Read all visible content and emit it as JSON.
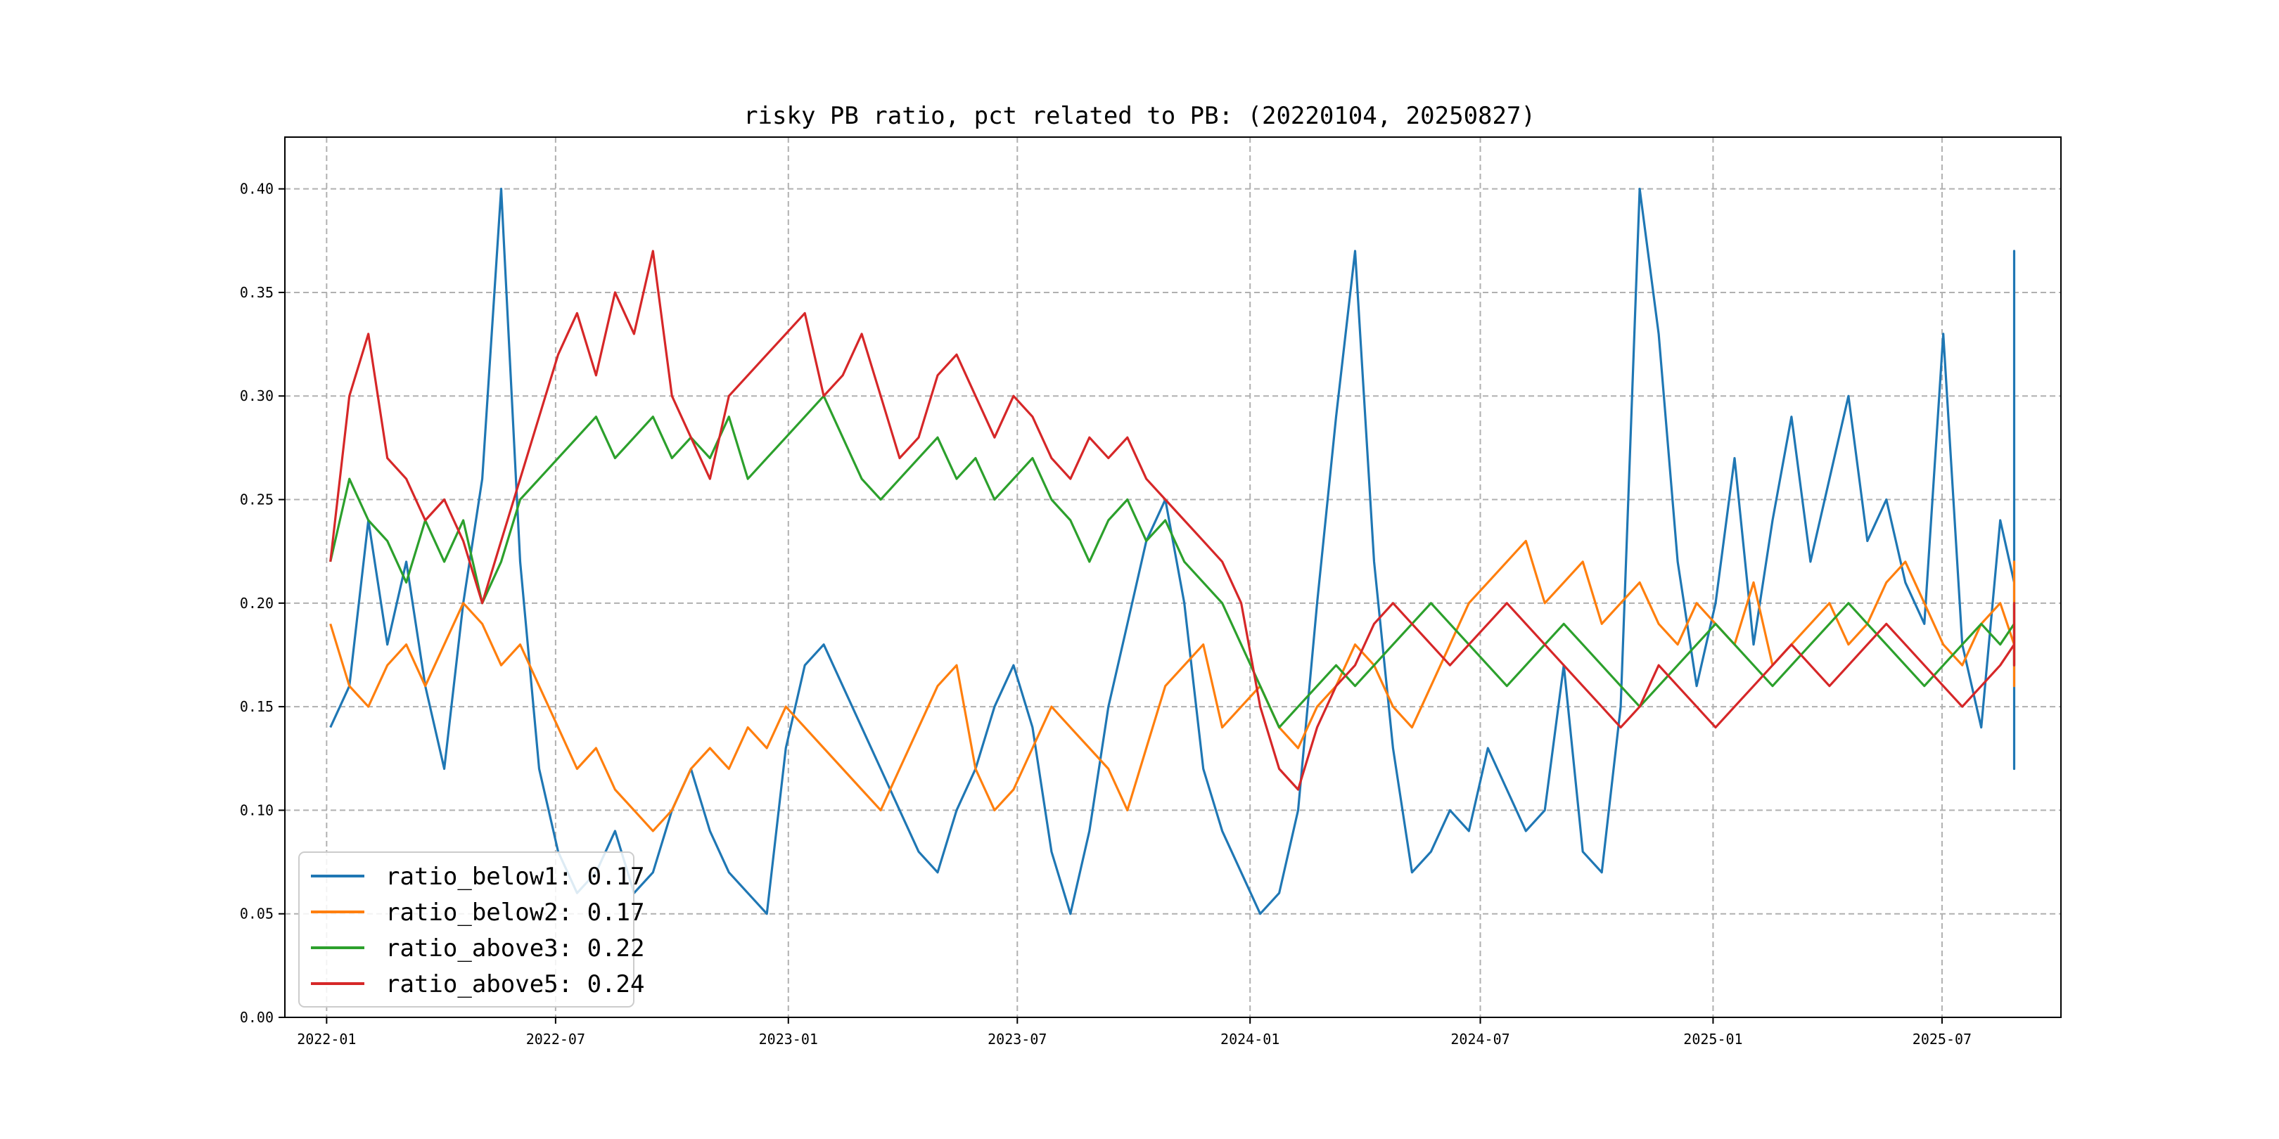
{
  "chart_data": {
    "type": "line",
    "title": "risky PB ratio, pct related to PB: (20220104, 20250827)",
    "xlabel": "",
    "ylabel": "",
    "date_range": [
      "2022-01-04",
      "2025-08-27"
    ],
    "xlim": [
      "2021-11-29",
      "2025-10-03"
    ],
    "ylim": [
      0,
      0.425
    ],
    "grid": true,
    "legend_position": "lower-left",
    "x_ticks": [
      "2022-01",
      "2022-07",
      "2023-01",
      "2023-07",
      "2024-01",
      "2024-07",
      "2025-01",
      "2025-07"
    ],
    "y_ticks": [
      "0.00",
      "0.05",
      "0.10",
      "0.15",
      "0.20",
      "0.25",
      "0.30",
      "0.35",
      "0.40"
    ],
    "series_step_days": 15,
    "series": [
      {
        "name": "ratio_below1",
        "legend": "ratio_below1: 0.17",
        "color": "#1f77b4",
        "values": [
          0.14,
          0.16,
          0.24,
          0.18,
          0.22,
          0.16,
          0.12,
          0.2,
          0.26,
          0.4,
          0.22,
          0.12,
          0.08,
          0.06,
          0.07,
          0.09,
          0.06,
          0.07,
          0.1,
          0.12,
          0.09,
          0.07,
          0.06,
          0.05,
          0.13,
          0.17,
          0.18,
          0.16,
          0.14,
          0.12,
          0.1,
          0.08,
          0.07,
          0.1,
          0.12,
          0.15,
          0.17,
          0.14,
          0.08,
          0.05,
          0.09,
          0.15,
          0.19,
          0.23,
          0.25,
          0.2,
          0.12,
          0.09,
          0.07,
          0.05,
          0.06,
          0.1,
          0.2,
          0.29,
          0.37,
          0.22,
          0.13,
          0.07,
          0.08,
          0.1,
          0.09,
          0.13,
          0.11,
          0.09,
          0.1,
          0.17,
          0.08,
          0.07,
          0.15,
          0.4,
          0.33,
          0.22,
          0.16,
          0.2,
          0.27,
          0.18,
          0.24,
          0.29,
          0.22,
          0.26,
          0.3,
          0.23,
          0.25,
          0.21,
          0.19,
          0.33,
          0.18,
          0.14,
          0.24,
          0.21,
          0.16,
          0.18,
          0.12,
          0.15,
          0.2,
          0.18,
          0.22,
          0.17,
          0.16,
          0.14,
          0.13,
          0.15,
          0.17,
          0.16,
          0.14,
          0.16,
          0.28,
          0.34,
          0.37,
          0.25,
          0.21,
          0.26
        ]
      },
      {
        "name": "ratio_below2",
        "legend": "ratio_below2: 0.17",
        "color": "#ff7f0e",
        "values": [
          0.19,
          0.16,
          0.15,
          0.17,
          0.18,
          0.16,
          0.18,
          0.2,
          0.19,
          0.17,
          0.18,
          0.16,
          0.14,
          0.12,
          0.13,
          0.11,
          0.1,
          0.09,
          0.1,
          0.12,
          0.13,
          0.12,
          0.14,
          0.13,
          0.15,
          0.14,
          0.13,
          0.12,
          0.11,
          0.1,
          0.12,
          0.14,
          0.16,
          0.17,
          0.12,
          0.1,
          0.11,
          0.13,
          0.15,
          0.14,
          0.13,
          0.12,
          0.1,
          0.13,
          0.16,
          0.17,
          0.18,
          0.14,
          0.15,
          0.16,
          0.14,
          0.13,
          0.15,
          0.16,
          0.18,
          0.17,
          0.15,
          0.14,
          0.16,
          0.18,
          0.2,
          0.21,
          0.22,
          0.23,
          0.2,
          0.21,
          0.22,
          0.19,
          0.2,
          0.21,
          0.19,
          0.18,
          0.2,
          0.19,
          0.18,
          0.21,
          0.17,
          0.18,
          0.19,
          0.2,
          0.18,
          0.19,
          0.21,
          0.22,
          0.2,
          0.18,
          0.17,
          0.19,
          0.2,
          0.18,
          0.17,
          0.19,
          0.18,
          0.17,
          0.18,
          0.19,
          0.17,
          0.16,
          0.18,
          0.17,
          0.16,
          0.17,
          0.18,
          0.17,
          0.16,
          0.18,
          0.19,
          0.2,
          0.22,
          0.18,
          0.19,
          0.2
        ]
      },
      {
        "name": "ratio_above3",
        "legend": "ratio_above3: 0.22",
        "color": "#2ca02c",
        "values": [
          0.22,
          0.26,
          0.24,
          0.23,
          0.21,
          0.24,
          0.22,
          0.24,
          0.2,
          0.22,
          0.25,
          0.26,
          0.27,
          0.28,
          0.29,
          0.27,
          0.28,
          0.29,
          0.27,
          0.28,
          0.27,
          0.29,
          0.26,
          0.27,
          0.28,
          0.29,
          0.3,
          0.28,
          0.26,
          0.25,
          0.26,
          0.27,
          0.28,
          0.26,
          0.27,
          0.25,
          0.26,
          0.27,
          0.25,
          0.24,
          0.22,
          0.24,
          0.25,
          0.23,
          0.24,
          0.22,
          0.21,
          0.2,
          0.18,
          0.16,
          0.14,
          0.15,
          0.16,
          0.17,
          0.16,
          0.17,
          0.18,
          0.19,
          0.2,
          0.19,
          0.18,
          0.17,
          0.16,
          0.17,
          0.18,
          0.19,
          0.18,
          0.17,
          0.16,
          0.15,
          0.16,
          0.17,
          0.18,
          0.19,
          0.18,
          0.17,
          0.16,
          0.17,
          0.18,
          0.19,
          0.2,
          0.19,
          0.18,
          0.17,
          0.16,
          0.17,
          0.18,
          0.19,
          0.18,
          0.19,
          0.18,
          0.17,
          0.18,
          0.19,
          0.18,
          0.19,
          0.2,
          0.19,
          0.18,
          0.19,
          0.18,
          0.19,
          0.2,
          0.19,
          0.18,
          0.19,
          0.2,
          0.19,
          0.18,
          0.19,
          0.18,
          0.19
        ]
      },
      {
        "name": "ratio_above5",
        "legend": "ratio_above5: 0.24",
        "color": "#d62728",
        "values": [
          0.22,
          0.3,
          0.33,
          0.27,
          0.26,
          0.24,
          0.25,
          0.23,
          0.2,
          0.23,
          0.26,
          0.29,
          0.32,
          0.34,
          0.31,
          0.35,
          0.33,
          0.37,
          0.3,
          0.28,
          0.26,
          0.3,
          0.31,
          0.32,
          0.33,
          0.34,
          0.3,
          0.31,
          0.33,
          0.3,
          0.27,
          0.28,
          0.31,
          0.32,
          0.3,
          0.28,
          0.3,
          0.29,
          0.27,
          0.26,
          0.28,
          0.27,
          0.28,
          0.26,
          0.25,
          0.24,
          0.23,
          0.22,
          0.2,
          0.15,
          0.12,
          0.11,
          0.14,
          0.16,
          0.17,
          0.19,
          0.2,
          0.19,
          0.18,
          0.17,
          0.18,
          0.19,
          0.2,
          0.19,
          0.18,
          0.17,
          0.16,
          0.15,
          0.14,
          0.15,
          0.17,
          0.16,
          0.15,
          0.14,
          0.15,
          0.16,
          0.17,
          0.18,
          0.17,
          0.16,
          0.17,
          0.18,
          0.19,
          0.18,
          0.17,
          0.16,
          0.15,
          0.16,
          0.17,
          0.18,
          0.17,
          0.19,
          0.18,
          0.17,
          0.18,
          0.19,
          0.18,
          0.17,
          0.18,
          0.19,
          0.18,
          0.17,
          0.18,
          0.19,
          0.18,
          0.19,
          0.2,
          0.18,
          0.17,
          0.18,
          0.19,
          0.18
        ]
      }
    ]
  }
}
